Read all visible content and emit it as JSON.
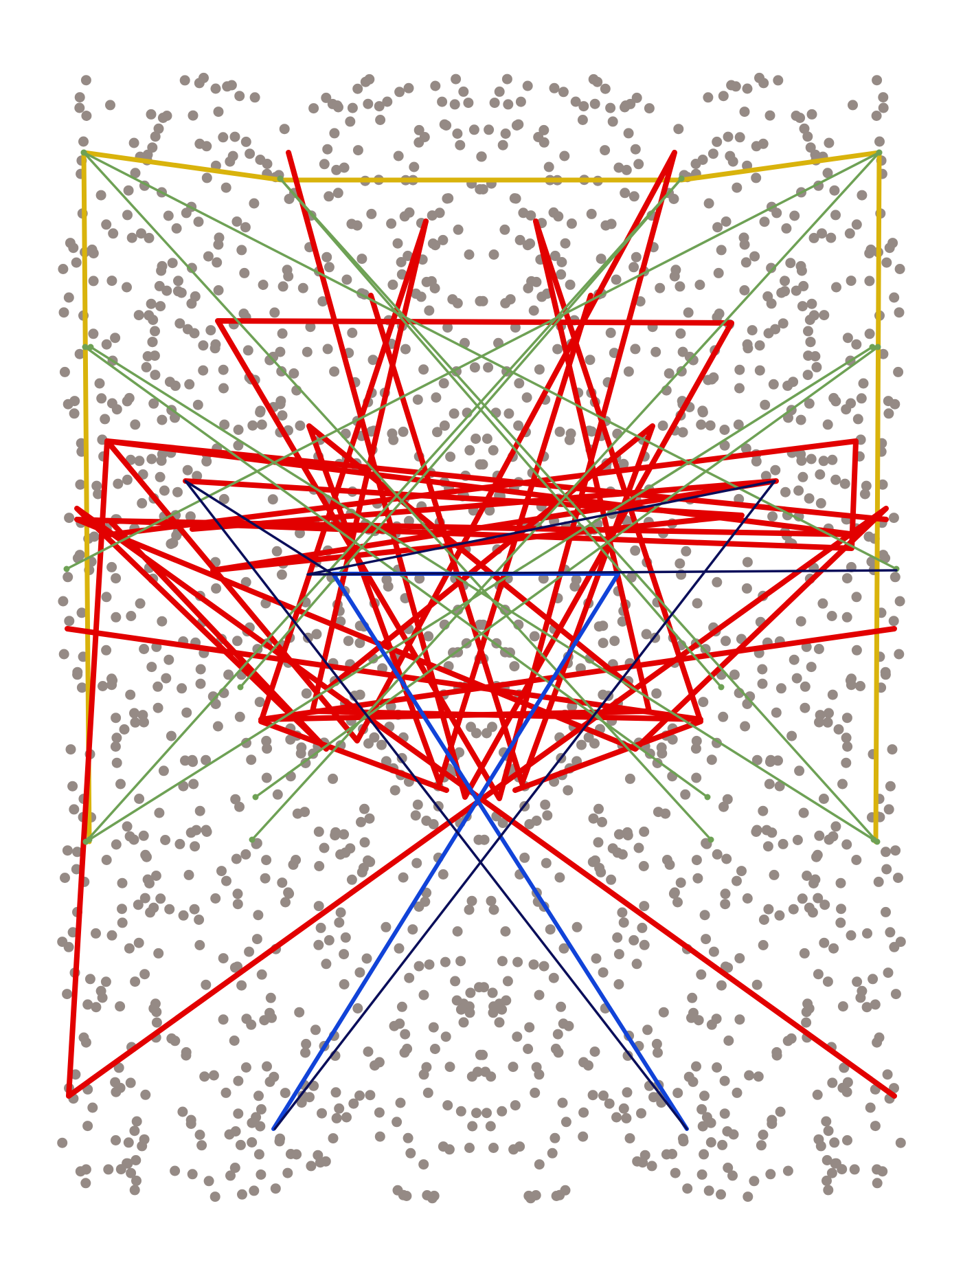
{
  "colors": {
    "background": "#ffffff",
    "dots": "#958a85",
    "yellow": "#d9b30c",
    "red": "#e20000",
    "green": "#6ea155",
    "blue": "#1143d8",
    "navy": "#0a0e5a"
  },
  "layers": [
    {
      "name": "dot-field",
      "color_key": "dots"
    },
    {
      "name": "yellow-frame",
      "color_key": "yellow"
    },
    {
      "name": "red-star-web",
      "color_key": "red"
    },
    {
      "name": "green-crossing-lines",
      "color_key": "green"
    },
    {
      "name": "blue-x-shape",
      "color_key": "blue"
    },
    {
      "name": "navy-x-shape",
      "color_key": "navy"
    }
  ]
}
